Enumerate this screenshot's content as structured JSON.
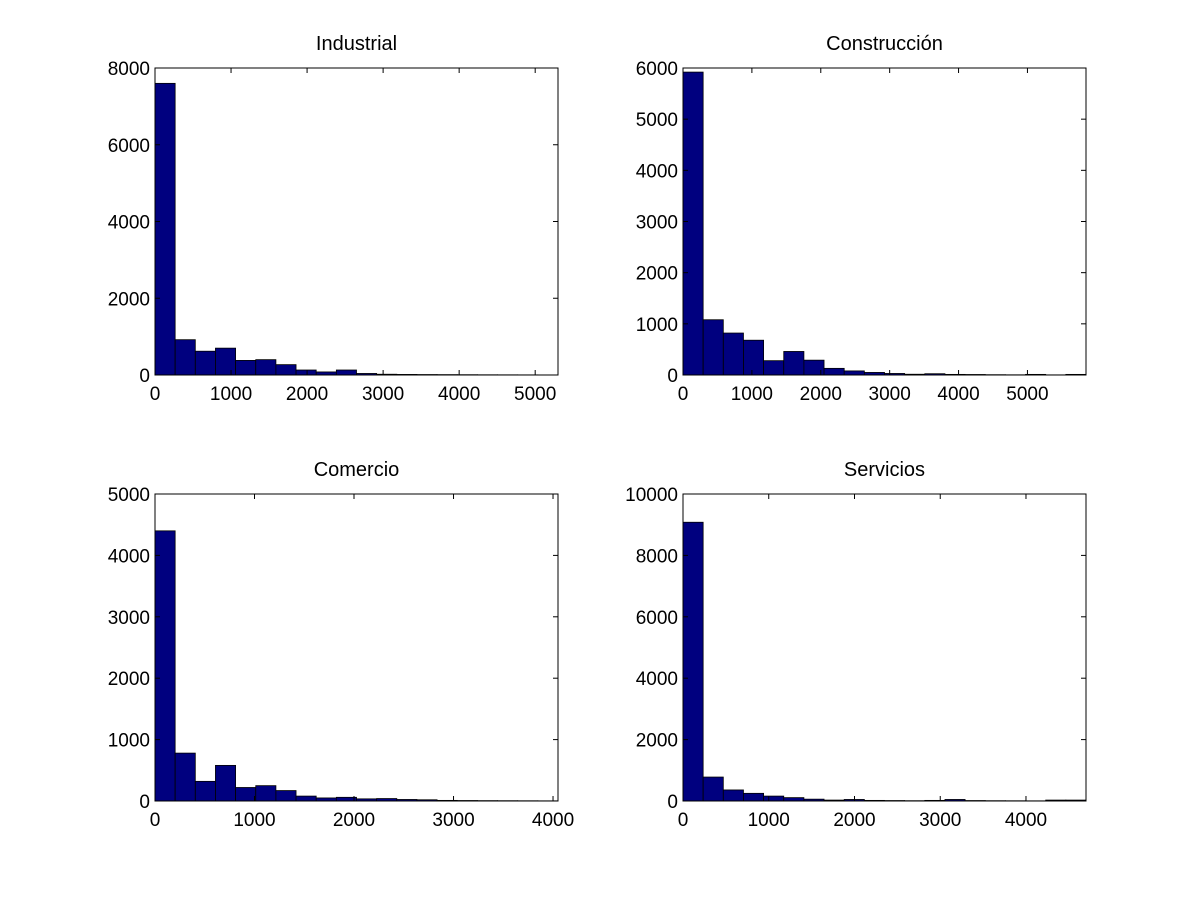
{
  "chart_data": [
    {
      "type": "bar",
      "title": "Industrial",
      "xlabel": "",
      "ylabel": "",
      "xlim": [
        0,
        5300
      ],
      "ylim": [
        0,
        8000
      ],
      "xticks": [
        "0",
        "1000",
        "2000",
        "3000",
        "4000",
        "5000"
      ],
      "yticks": [
        "0",
        "2000",
        "4000",
        "6000",
        "8000"
      ],
      "bin_width": 265,
      "values": [
        7600,
        920,
        620,
        700,
        380,
        400,
        270,
        130,
        80,
        130,
        40,
        20,
        15,
        12,
        10,
        8,
        6,
        5,
        4,
        3
      ],
      "bar_color": "#00007f",
      "grid": false
    },
    {
      "type": "bar",
      "title": "Construcción",
      "xlabel": "",
      "ylabel": "",
      "xlim": [
        0,
        5850
      ],
      "ylim": [
        0,
        6000
      ],
      "xticks": [
        "0",
        "1000",
        "2000",
        "3000",
        "4000",
        "5000"
      ],
      "yticks": [
        "0",
        "1000",
        "2000",
        "3000",
        "4000",
        "5000",
        "6000"
      ],
      "bin_width": 292.5,
      "values": [
        5920,
        1080,
        820,
        680,
        280,
        460,
        290,
        130,
        80,
        50,
        30,
        15,
        25,
        12,
        10,
        6,
        4,
        12,
        3,
        12
      ],
      "bar_color": "#00007f",
      "grid": false
    },
    {
      "type": "bar",
      "title": "Comercio",
      "xlabel": "",
      "ylabel": "",
      "xlim": [
        0,
        4050
      ],
      "ylim": [
        0,
        5000
      ],
      "xticks": [
        "0",
        "1000",
        "2000",
        "3000",
        "4000"
      ],
      "yticks": [
        "0",
        "1000",
        "2000",
        "3000",
        "4000",
        "5000"
      ],
      "bin_width": 202.5,
      "values": [
        4400,
        780,
        320,
        580,
        220,
        250,
        170,
        80,
        50,
        60,
        35,
        40,
        25,
        20,
        10,
        8,
        6,
        5,
        4,
        3
      ],
      "bar_color": "#00007f",
      "grid": false
    },
    {
      "type": "bar",
      "title": "Servicios",
      "xlabel": "",
      "ylabel": "",
      "xlim": [
        0,
        4700
      ],
      "ylim": [
        0,
        10000
      ],
      "xticks": [
        "0",
        "1000",
        "2000",
        "3000",
        "4000"
      ],
      "yticks": [
        "0",
        "2000",
        "4000",
        "6000",
        "8000",
        "10000"
      ],
      "bin_width": 235,
      "values": [
        9080,
        780,
        360,
        250,
        160,
        110,
        60,
        30,
        50,
        20,
        15,
        10,
        20,
        50,
        15,
        10,
        8,
        6,
        30,
        30
      ],
      "bar_color": "#00007f",
      "grid": false
    }
  ]
}
